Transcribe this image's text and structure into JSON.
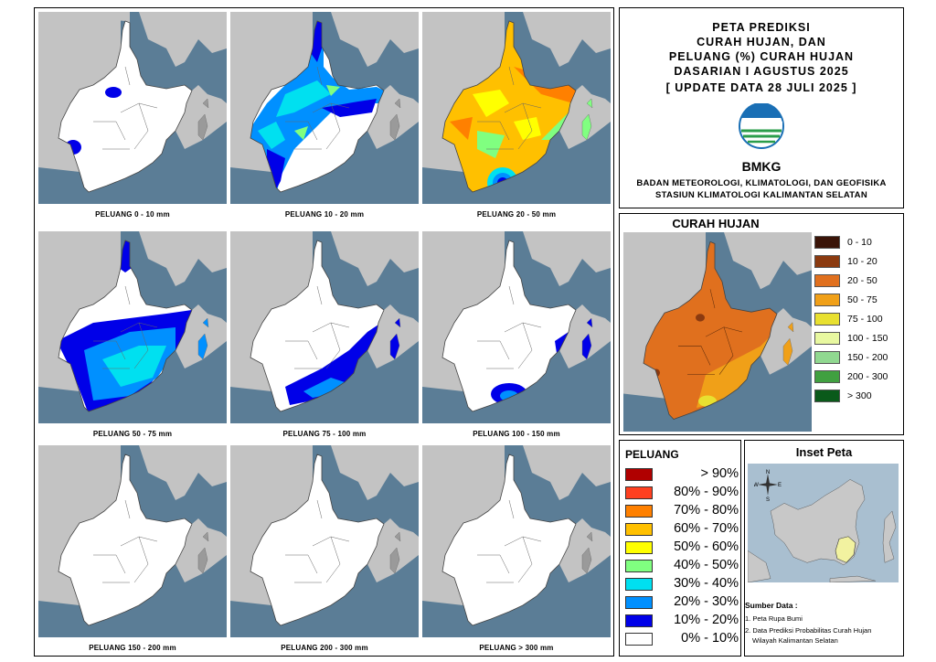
{
  "title": {
    "lines": [
      "PETA PREDIKSI",
      "CURAH HUJAN, DAN",
      "PELUANG (%) CURAH HUJAN",
      "DASARIAN I AGUSTUS 2025",
      "[ UPDATE DATA 28 JULI 2025 ]"
    ],
    "logo_text": "BMKG",
    "org_line1": "BADAN METEOROLOGI, KLIMATOLOGI, DAN GEOFISIKA",
    "org_line2": "STASIUN KLIMATOLOGI KALIMANTAN SELATAN"
  },
  "maps": [
    {
      "caption": "PELUANG 0 - 10 mm"
    },
    {
      "caption": "PELUANG 10 - 20 mm"
    },
    {
      "caption": "PELUANG 20 - 50 mm"
    },
    {
      "caption": "PELUANG 50 - 75 mm"
    },
    {
      "caption": "PELUANG 75 - 100 mm"
    },
    {
      "caption": "PELUANG 100 - 150 mm"
    },
    {
      "caption": "PELUANG 150 - 200 mm"
    },
    {
      "caption": "PELUANG 200 - 300 mm"
    },
    {
      "caption": "PELUANG > 300 mm"
    }
  ],
  "rainfall_legend": {
    "title": "CURAH HUJAN",
    "items": [
      {
        "label": "0 - 10",
        "color": "#3a1408"
      },
      {
        "label": "10 - 20",
        "color": "#8b3a10"
      },
      {
        "label": "20 - 50",
        "color": "#e0701e"
      },
      {
        "label": "50 - 75",
        "color": "#f0a018"
      },
      {
        "label": "75 - 100",
        "color": "#e8e030"
      },
      {
        "label": "100 - 150",
        "color": "#e8f8a0"
      },
      {
        "label": "150 - 200",
        "color": "#90d890"
      },
      {
        "label": "200 - 300",
        "color": "#40a040"
      },
      {
        "label": "> 300",
        "color": "#0a5a1a"
      }
    ]
  },
  "probability_legend": {
    "title": "PELUANG",
    "items": [
      {
        "label": "> 90%",
        "color": "#b00000"
      },
      {
        "label": "80% - 90%",
        "color": "#ff4020"
      },
      {
        "label": "70% - 80%",
        "color": "#ff8000"
      },
      {
        "label": "60% - 70%",
        "color": "#ffc000"
      },
      {
        "label": "50% - 60%",
        "color": "#ffff00"
      },
      {
        "label": "40% - 50%",
        "color": "#80ff80"
      },
      {
        "label": "30% - 40%",
        "color": "#00e0f0"
      },
      {
        "label": "20% - 30%",
        "color": "#0090ff"
      },
      {
        "label": "10% - 20%",
        "color": "#0000e8"
      },
      {
        "label": "0% - 10%",
        "color": "#ffffff"
      }
    ]
  },
  "inset": {
    "title": "Inset Peta",
    "compass": {
      "n": "N",
      "s": "S",
      "e": "E",
      "w": "W"
    },
    "source_title": "Sumber Data :",
    "sources": [
      "1. Peta Rupa Bumi",
      "2. Data Prediksi Probabilitas Curah Hujan",
      "Wilayah Kalimantan Selatan"
    ]
  },
  "colors": {
    "sea": "#5b7d96",
    "land_outside": "#c3c3c3",
    "region_base": "#ffffff"
  }
}
